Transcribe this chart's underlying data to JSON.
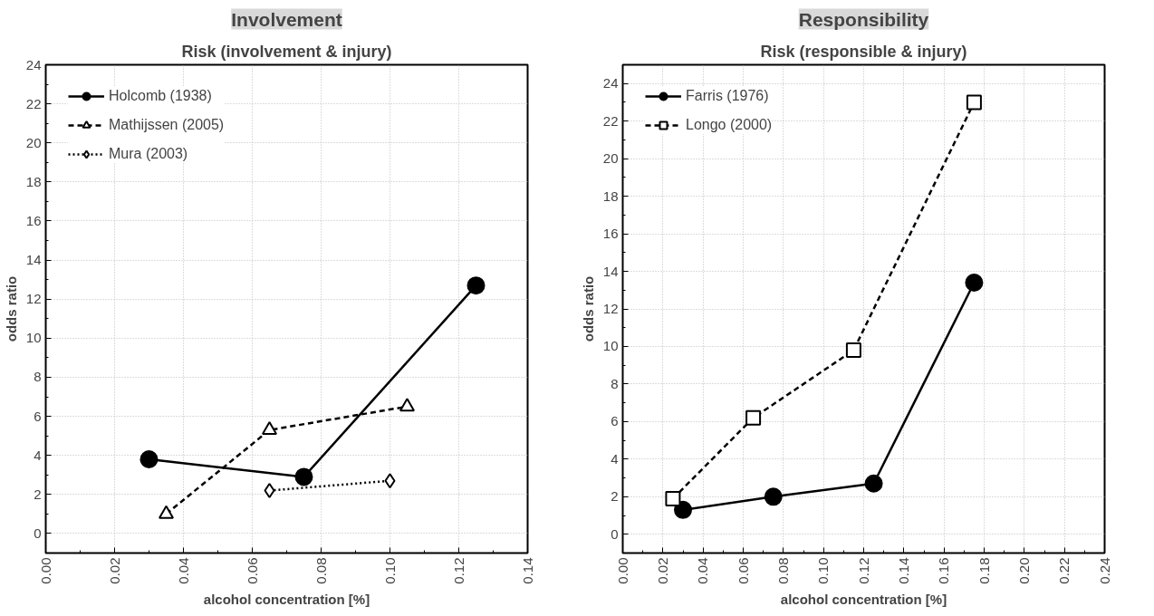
{
  "chart_data": [
    {
      "type": "line",
      "title": "Involvement",
      "subtitle": "Risk (involvement & injury)",
      "xlabel": "alcohol concentration [%]",
      "ylabel": "odds ratio",
      "xlim": [
        0,
        0.14
      ],
      "ylim": [
        -1,
        24
      ],
      "xticks": [
        {
          "value": 0,
          "label": "0.00"
        },
        {
          "value": 0.02,
          "label": "0.02"
        },
        {
          "value": 0.04,
          "label": "0.04"
        },
        {
          "value": 0.06,
          "label": "0.06"
        },
        {
          "value": 0.08,
          "label": "0.08"
        },
        {
          "value": 0.1,
          "label": "0.10"
        },
        {
          "value": 0.12,
          "label": "0.12"
        },
        {
          "value": 0.14,
          "label": "0.14"
        }
      ],
      "yticks": [
        0,
        2,
        4,
        6,
        8,
        10,
        12,
        14,
        16,
        18,
        20,
        22,
        24
      ],
      "grid": true,
      "legend": "top left",
      "series": [
        {
          "name": "Holcomb (1938)",
          "color": "#000000",
          "marker": "circle",
          "line_style": "solid",
          "x": [
            0.03,
            0.075,
            0.125
          ],
          "values": [
            3.8,
            2.9,
            12.7
          ]
        },
        {
          "name": "Mathijssen (2005)",
          "color": "#000000",
          "marker": "triangle",
          "line_style": "dashed",
          "x": [
            0.035,
            0.065,
            0.105
          ],
          "values": [
            1.0,
            5.3,
            6.5
          ]
        },
        {
          "name": "Mura (2003)",
          "color": "#000000",
          "marker": "diamond",
          "line_style": "dotted",
          "x": [
            0.065,
            0.1
          ],
          "values": [
            2.2,
            2.7
          ]
        }
      ]
    },
    {
      "type": "line",
      "title": "Responsibility",
      "subtitle": "Risk (responsible & injury)",
      "xlabel": "alcohol concentration [%]",
      "ylabel": "odds ratio",
      "xlim": [
        0,
        0.24
      ],
      "ylim": [
        -1,
        25
      ],
      "xticks": [
        {
          "value": 0,
          "label": "0.00"
        },
        {
          "value": 0.02,
          "label": "0.02"
        },
        {
          "value": 0.04,
          "label": "0.04"
        },
        {
          "value": 0.06,
          "label": "0.06"
        },
        {
          "value": 0.08,
          "label": "0.08"
        },
        {
          "value": 0.1,
          "label": "0.10"
        },
        {
          "value": 0.12,
          "label": "0.12"
        },
        {
          "value": 0.14,
          "label": "0.14"
        },
        {
          "value": 0.16,
          "label": "0.16"
        },
        {
          "value": 0.18,
          "label": "0.18"
        },
        {
          "value": 0.2,
          "label": "0.20"
        },
        {
          "value": 0.22,
          "label": "0.22"
        },
        {
          "value": 0.24,
          "label": "0.24"
        }
      ],
      "yticks": [
        0,
        2,
        4,
        6,
        8,
        10,
        12,
        14,
        16,
        18,
        20,
        22,
        24
      ],
      "grid": true,
      "legend": "top left",
      "series": [
        {
          "name": "Farris (1976)",
          "color": "#000000",
          "marker": "circle",
          "line_style": "solid",
          "x": [
            0.03,
            0.075,
            0.125,
            0.175
          ],
          "values": [
            1.3,
            2.0,
            2.7,
            13.4
          ]
        },
        {
          "name": "Longo (2000)",
          "color": "#000000",
          "marker": "square",
          "line_style": "dashed",
          "x": [
            0.025,
            0.065,
            0.115,
            0.175
          ],
          "values": [
            1.9,
            6.2,
            9.8,
            23.0
          ]
        }
      ]
    }
  ]
}
